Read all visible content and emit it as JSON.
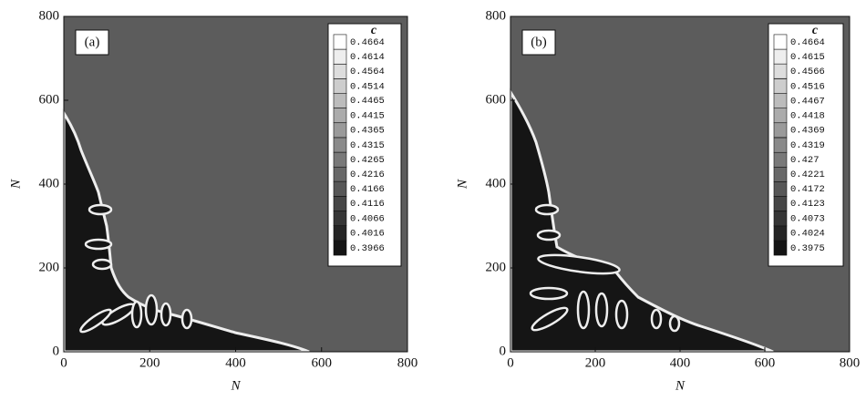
{
  "chart_data": [
    {
      "type": "heatmap",
      "panel_label": "(a)",
      "xlabel": "N",
      "ylabel": "N",
      "xlim": [
        0,
        800
      ],
      "ylim": [
        0,
        800
      ],
      "xticks": [
        0,
        200,
        400,
        600,
        800
      ],
      "yticks": [
        0,
        200,
        400,
        600,
        800
      ],
      "colorbar_title": "c",
      "colorbar_ticks": [
        0.3966,
        0.4016,
        0.4066,
        0.4116,
        0.4166,
        0.4216,
        0.4265,
        0.4315,
        0.4365,
        0.4415,
        0.4465,
        0.4514,
        0.4564,
        0.4614,
        0.4664
      ]
    },
    {
      "type": "heatmap",
      "panel_label": "(b)",
      "xlabel": "N",
      "ylabel": "N",
      "xlim": [
        0,
        800
      ],
      "ylim": [
        0,
        800
      ],
      "xticks": [
        0,
        200,
        400,
        600,
        800
      ],
      "yticks": [
        0,
        200,
        400,
        600,
        800
      ],
      "colorbar_title": "c",
      "colorbar_ticks": [
        0.3975,
        0.4024,
        0.4073,
        0.4123,
        0.4172,
        0.4221,
        0.427,
        0.4319,
        0.4369,
        0.4418,
        0.4467,
        0.4516,
        0.4566,
        0.4615,
        0.4664
      ]
    }
  ]
}
